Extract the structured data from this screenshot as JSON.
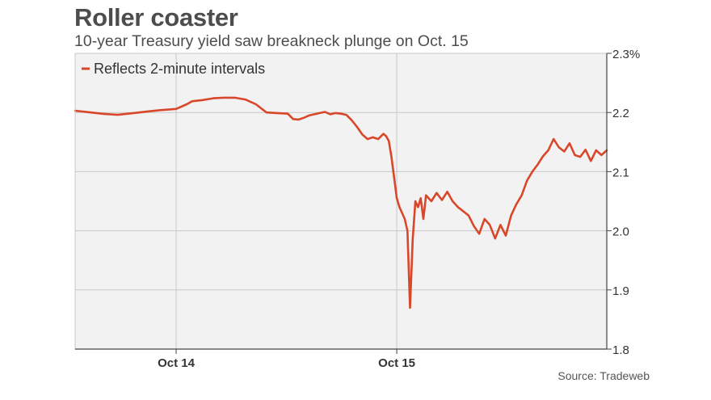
{
  "header": {
    "title": "Roller coaster",
    "subtitle": "10-year Treasury yield saw breakneck plunge on Oct. 15"
  },
  "footer": {
    "source": "Source: Tradeweb"
  },
  "colors": {
    "series": "#d9472b",
    "plot_background": "#f2f2f2",
    "grid": "#c8c8c8",
    "axis": "#444444",
    "text": "#4d4d4d"
  },
  "chart_data": {
    "type": "line",
    "title": "Roller coaster",
    "subtitle": "10-year Treasury yield saw breakneck plunge on Oct. 15",
    "xlabel": "",
    "ylabel": "",
    "ylim": [
      1.8,
      2.3
    ],
    "xlim": [
      0,
      100
    ],
    "y_ticks": [
      {
        "value": 2.3,
        "label": "2.3%"
      },
      {
        "value": 2.2,
        "label": "2.2"
      },
      {
        "value": 2.1,
        "label": "2.1"
      },
      {
        "value": 2.0,
        "label": "2.0"
      },
      {
        "value": 1.9,
        "label": "1.9"
      },
      {
        "value": 1.8,
        "label": "1.8"
      }
    ],
    "x_ticks": [
      {
        "value": 19,
        "label": "Oct 14"
      },
      {
        "value": 60.5,
        "label": "Oct 15"
      }
    ],
    "grid": true,
    "legend_position": "top-left",
    "series": [
      {
        "name": "Reflects 2-minute intervals",
        "x": [
          0,
          3,
          5,
          8,
          11,
          14,
          16,
          19,
          21,
          22,
          24,
          26,
          28,
          30,
          32,
          34,
          35,
          36,
          38,
          40,
          41,
          42,
          43,
          44,
          45,
          46,
          47,
          48,
          49,
          50,
          51,
          52,
          53,
          54,
          55,
          56,
          57,
          58,
          58.5,
          59,
          59.5,
          60,
          60.5,
          61,
          61.5,
          62,
          62.5,
          63,
          63.5,
          64,
          64.5,
          65,
          65.5,
          66,
          67,
          68,
          69,
          70,
          71,
          72,
          73,
          74,
          75,
          76,
          77,
          78,
          79,
          80,
          81,
          82,
          83,
          84,
          85,
          86,
          87,
          88,
          89,
          90,
          91,
          92,
          93,
          94,
          95,
          96,
          97,
          98,
          99,
          100
        ],
        "values": [
          2.203,
          2.2,
          2.198,
          2.196,
          2.199,
          2.202,
          2.204,
          2.206,
          2.214,
          2.219,
          2.221,
          2.224,
          2.225,
          2.225,
          2.222,
          2.214,
          2.207,
          2.2,
          2.199,
          2.198,
          2.189,
          2.188,
          2.191,
          2.195,
          2.197,
          2.199,
          2.201,
          2.197,
          2.199,
          2.198,
          2.196,
          2.187,
          2.176,
          2.163,
          2.155,
          2.158,
          2.155,
          2.164,
          2.16,
          2.152,
          2.125,
          2.09,
          2.055,
          2.04,
          2.03,
          2.02,
          2.0,
          1.87,
          1.985,
          2.05,
          2.04,
          2.055,
          2.02,
          2.06,
          2.05,
          2.064,
          2.052,
          2.066,
          2.05,
          2.04,
          2.033,
          2.026,
          2.008,
          1.995,
          2.02,
          2.01,
          1.987,
          2.01,
          1.992,
          2.026,
          2.045,
          2.06,
          2.085,
          2.1,
          2.112,
          2.126,
          2.136,
          2.155,
          2.141,
          2.134,
          2.148,
          2.128,
          2.125,
          2.137,
          2.118,
          2.136,
          2.128,
          2.136
        ]
      }
    ]
  }
}
